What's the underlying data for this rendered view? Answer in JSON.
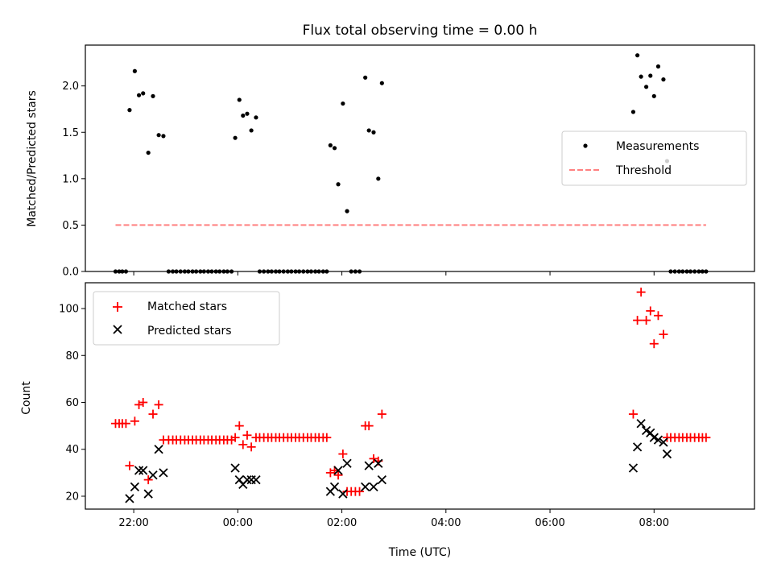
{
  "chart_data": [
    {
      "type": "scatter",
      "title": "Flux total observing time = 0.00 h",
      "xlabel": "",
      "ylabel": "Matched/Predicted stars",
      "xlim": [
        -2.93,
        9.93
      ],
      "ylim": [
        0.0,
        2.44
      ],
      "xticks": [
        -2,
        0,
        2,
        4,
        6,
        8
      ],
      "xtick_labels": [],
      "yticks": [
        0.0,
        0.5,
        1.0,
        1.5,
        2.0
      ],
      "ytick_labels": [
        "0.0",
        "0.5",
        "1.0",
        "1.5",
        "2.0"
      ],
      "grid": false,
      "legend_position": "center-right",
      "series": [
        {
          "name": "Measurements",
          "kind": "points",
          "color": "#000000",
          "points": [
            [
              -2.35,
              0
            ],
            [
              -2.28,
              0
            ],
            [
              -2.22,
              0
            ],
            [
              -2.15,
              0
            ],
            [
              -2.08,
              1.74
            ],
            [
              -1.98,
              2.16
            ],
            [
              -1.9,
              1.9
            ],
            [
              -1.82,
              1.92
            ],
            [
              -1.72,
              1.28
            ],
            [
              -1.63,
              1.89
            ],
            [
              -1.52,
              1.47
            ],
            [
              -1.43,
              1.46
            ],
            [
              -1.33,
              0
            ],
            [
              -1.25,
              0
            ],
            [
              -1.18,
              0
            ],
            [
              -1.1,
              0
            ],
            [
              -1.02,
              0
            ],
            [
              -0.95,
              0
            ],
            [
              -0.87,
              0
            ],
            [
              -0.8,
              0
            ],
            [
              -0.72,
              0
            ],
            [
              -0.65,
              0
            ],
            [
              -0.57,
              0
            ],
            [
              -0.5,
              0
            ],
            [
              -0.42,
              0
            ],
            [
              -0.35,
              0
            ],
            [
              -0.27,
              0
            ],
            [
              -0.2,
              0
            ],
            [
              -0.12,
              0
            ],
            [
              -0.05,
              1.44
            ],
            [
              0.03,
              1.85
            ],
            [
              0.1,
              1.68
            ],
            [
              0.18,
              1.7
            ],
            [
              0.26,
              1.52
            ],
            [
              0.35,
              1.66
            ],
            [
              0.42,
              0
            ],
            [
              0.5,
              0
            ],
            [
              0.58,
              0
            ],
            [
              0.65,
              0
            ],
            [
              0.73,
              0
            ],
            [
              0.8,
              0
            ],
            [
              0.88,
              0
            ],
            [
              0.96,
              0
            ],
            [
              1.03,
              0
            ],
            [
              1.11,
              0
            ],
            [
              1.18,
              0
            ],
            [
              1.26,
              0
            ],
            [
              1.34,
              0
            ],
            [
              1.41,
              0
            ],
            [
              1.49,
              0
            ],
            [
              1.56,
              0
            ],
            [
              1.64,
              0
            ],
            [
              1.71,
              0
            ],
            [
              1.78,
              1.36
            ],
            [
              1.86,
              1.33
            ],
            [
              1.93,
              0.94
            ],
            [
              2.02,
              1.81
            ],
            [
              2.1,
              0.65
            ],
            [
              2.18,
              0
            ],
            [
              2.26,
              0
            ],
            [
              2.34,
              0
            ],
            [
              2.45,
              2.09
            ],
            [
              2.52,
              1.52
            ],
            [
              2.61,
              1.5
            ],
            [
              2.7,
              1.0
            ],
            [
              2.77,
              2.03
            ],
            [
              7.6,
              1.72
            ],
            [
              7.68,
              2.33
            ],
            [
              7.75,
              2.1
            ],
            [
              7.85,
              1.99
            ],
            [
              7.93,
              2.11
            ],
            [
              8.0,
              1.89
            ],
            [
              8.08,
              2.21
            ],
            [
              8.18,
              2.07
            ],
            [
              8.25,
              1.19
            ],
            [
              8.32,
              0
            ],
            [
              8.4,
              0
            ],
            [
              8.48,
              0
            ],
            [
              8.55,
              0
            ],
            [
              8.63,
              0
            ],
            [
              8.7,
              0
            ],
            [
              8.78,
              0
            ],
            [
              8.86,
              0
            ],
            [
              8.93,
              0
            ],
            [
              9.0,
              0
            ]
          ]
        },
        {
          "name": "Threshold",
          "kind": "line",
          "color": "#ff8080",
          "dash": "dashed",
          "points": [
            [
              -2.35,
              0.5
            ],
            [
              9.0,
              0.5
            ]
          ]
        }
      ]
    },
    {
      "type": "scatter",
      "title": "",
      "xlabel": "Time (UTC)",
      "ylabel": "Count",
      "xlim": [
        -2.93,
        9.93
      ],
      "ylim": [
        14.5,
        111
      ],
      "xticks": [
        -2,
        0,
        2,
        4,
        6,
        8
      ],
      "xtick_labels": [
        "22:00",
        "00:00",
        "02:00",
        "04:00",
        "06:00",
        "08:00"
      ],
      "yticks": [
        20,
        40,
        60,
        80,
        100
      ],
      "ytick_labels": [
        "20",
        "40",
        "60",
        "80",
        "100"
      ],
      "grid": false,
      "legend_position": "upper-left",
      "series": [
        {
          "name": "Matched stars",
          "marker": "plus",
          "color": "#ff0000",
          "points": [
            [
              -2.35,
              51
            ],
            [
              -2.28,
              51
            ],
            [
              -2.22,
              51
            ],
            [
              -2.15,
              51
            ],
            [
              -2.08,
              33
            ],
            [
              -1.98,
              52
            ],
            [
              -1.9,
              59
            ],
            [
              -1.82,
              60
            ],
            [
              -1.72,
              27
            ],
            [
              -1.63,
              55
            ],
            [
              -1.52,
              59
            ],
            [
              -1.43,
              44
            ],
            [
              -1.33,
              44
            ],
            [
              -1.25,
              44
            ],
            [
              -1.18,
              44
            ],
            [
              -1.1,
              44
            ],
            [
              -1.02,
              44
            ],
            [
              -0.95,
              44
            ],
            [
              -0.87,
              44
            ],
            [
              -0.8,
              44
            ],
            [
              -0.72,
              44
            ],
            [
              -0.65,
              44
            ],
            [
              -0.57,
              44
            ],
            [
              -0.5,
              44
            ],
            [
              -0.42,
              44
            ],
            [
              -0.35,
              44
            ],
            [
              -0.27,
              44
            ],
            [
              -0.2,
              44
            ],
            [
              -0.12,
              44
            ],
            [
              -0.05,
              45
            ],
            [
              0.03,
              50
            ],
            [
              0.1,
              42
            ],
            [
              0.18,
              46
            ],
            [
              0.26,
              41
            ],
            [
              0.35,
              45
            ],
            [
              0.42,
              45
            ],
            [
              0.5,
              45
            ],
            [
              0.58,
              45
            ],
            [
              0.65,
              45
            ],
            [
              0.73,
              45
            ],
            [
              0.8,
              45
            ],
            [
              0.88,
              45
            ],
            [
              0.96,
              45
            ],
            [
              1.03,
              45
            ],
            [
              1.11,
              45
            ],
            [
              1.18,
              45
            ],
            [
              1.26,
              45
            ],
            [
              1.34,
              45
            ],
            [
              1.41,
              45
            ],
            [
              1.49,
              45
            ],
            [
              1.56,
              45
            ],
            [
              1.64,
              45
            ],
            [
              1.71,
              45
            ],
            [
              1.78,
              30
            ],
            [
              1.86,
              31
            ],
            [
              1.93,
              29
            ],
            [
              2.02,
              38
            ],
            [
              2.1,
              22
            ],
            [
              2.18,
              22
            ],
            [
              2.26,
              22
            ],
            [
              2.34,
              22
            ],
            [
              2.45,
              50
            ],
            [
              2.52,
              50
            ],
            [
              2.61,
              36
            ],
            [
              2.7,
              35
            ],
            [
              2.77,
              55
            ],
            [
              7.6,
              55
            ],
            [
              7.68,
              95
            ],
            [
              7.75,
              107
            ],
            [
              7.85,
              95
            ],
            [
              7.93,
              99
            ],
            [
              8.0,
              85
            ],
            [
              8.08,
              97
            ],
            [
              8.18,
              89
            ],
            [
              8.25,
              45
            ],
            [
              8.32,
              45
            ],
            [
              8.4,
              45
            ],
            [
              8.48,
              45
            ],
            [
              8.55,
              45
            ],
            [
              8.63,
              45
            ],
            [
              8.7,
              45
            ],
            [
              8.78,
              45
            ],
            [
              8.86,
              45
            ],
            [
              8.93,
              45
            ],
            [
              9.0,
              45
            ]
          ]
        },
        {
          "name": "Predicted stars",
          "marker": "x",
          "color": "#000000",
          "points": [
            [
              -2.08,
              19
            ],
            [
              -1.98,
              24
            ],
            [
              -1.9,
              31
            ],
            [
              -1.82,
              31
            ],
            [
              -1.72,
              21
            ],
            [
              -1.63,
              29
            ],
            [
              -1.52,
              40
            ],
            [
              -1.43,
              30
            ],
            [
              -0.05,
              32
            ],
            [
              0.03,
              27
            ],
            [
              0.1,
              25
            ],
            [
              0.18,
              27
            ],
            [
              0.26,
              27
            ],
            [
              0.35,
              27
            ],
            [
              1.78,
              22
            ],
            [
              1.86,
              24
            ],
            [
              1.93,
              31
            ],
            [
              2.02,
              21
            ],
            [
              2.1,
              34
            ],
            [
              2.45,
              24
            ],
            [
              2.52,
              33
            ],
            [
              2.61,
              24
            ],
            [
              2.7,
              34
            ],
            [
              2.77,
              27
            ],
            [
              7.6,
              32
            ],
            [
              7.68,
              41
            ],
            [
              7.75,
              51
            ],
            [
              7.85,
              48
            ],
            [
              7.93,
              47
            ],
            [
              8.0,
              45
            ],
            [
              8.08,
              44
            ],
            [
              8.18,
              43
            ],
            [
              8.25,
              38
            ]
          ]
        }
      ]
    }
  ]
}
